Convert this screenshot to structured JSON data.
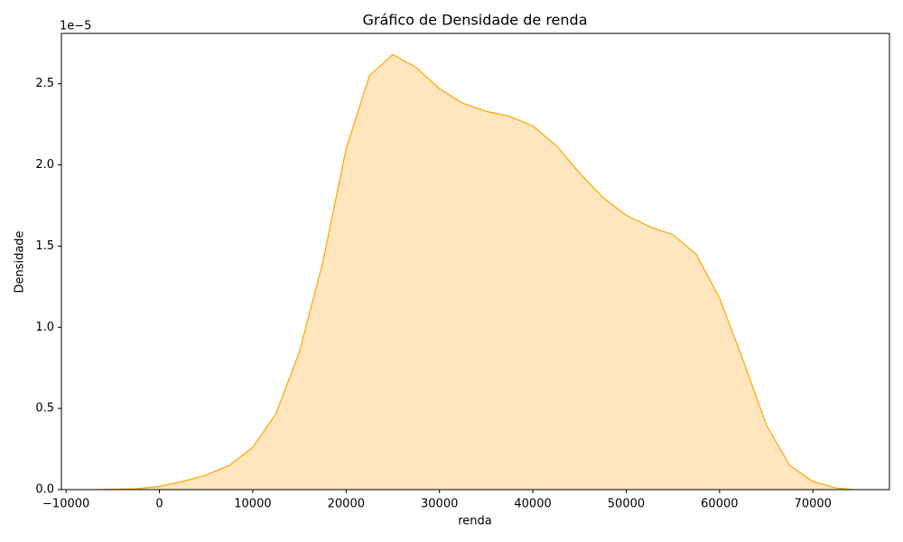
{
  "chart_data": {
    "type": "density",
    "title": "Gráfico de Densidade de renda",
    "x_label": "renda",
    "y_label": "Densidade",
    "y_offset_label": "1e−5",
    "x": [
      -6700,
      -2500,
      0,
      2500,
      5000,
      7500,
      10000,
      12500,
      15000,
      17500,
      20000,
      22500,
      25000,
      27500,
      30000,
      32500,
      35000,
      37500,
      40000,
      42500,
      45000,
      47500,
      50000,
      52500,
      55000,
      57500,
      60000,
      62500,
      65000,
      67500,
      70000,
      72500,
      74300
    ],
    "values": [
      0.0,
      0.005,
      0.02,
      0.05,
      0.09,
      0.15,
      0.26,
      0.47,
      0.85,
      1.4,
      2.1,
      2.55,
      2.68,
      2.6,
      2.47,
      2.38,
      2.33,
      2.3,
      2.24,
      2.12,
      1.95,
      1.8,
      1.69,
      1.62,
      1.57,
      1.45,
      1.18,
      0.8,
      0.4,
      0.15,
      0.05,
      0.01,
      0.0
    ],
    "color": "#ffa500",
    "fill_color": "#ffe6be",
    "xlim": [
      -10500,
      78200
    ],
    "ylim": [
      0,
      2.81
    ],
    "xticks": [
      {
        "value": -10000,
        "label": "−10000"
      },
      0,
      10000,
      20000,
      30000,
      40000,
      50000,
      60000,
      70000
    ],
    "yticks": [
      {
        "value": 0,
        "label": "0.0"
      },
      {
        "value": 0.5,
        "label": "0.5"
      },
      {
        "value": 1,
        "label": "1.0"
      },
      {
        "value": 1.5,
        "label": "1.5"
      },
      {
        "value": 2,
        "label": "2.0"
      },
      {
        "value": 2.5,
        "label": "2.5"
      }
    ],
    "grid": false
  }
}
